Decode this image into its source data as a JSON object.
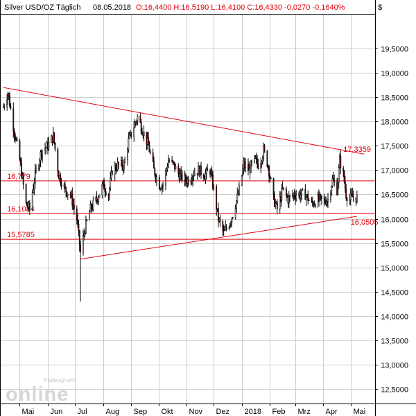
{
  "header": {
    "instrument": "Silver USD/OZ Täglich",
    "date": "08.05.2018",
    "ohlc_text": "O:16,4400 H:16,5190 L:16,4100 C:16,4330 -0,0270 -0,1640%",
    "currency_symbol": "$"
  },
  "watermark": {
    "line1": "Tradesignal®",
    "line2": "online"
  },
  "colors": {
    "background": "#ffffff",
    "frame": "#000000",
    "grid": "#c8d0c8",
    "candle_up": "#ffffff",
    "candle_down": "#8b0000",
    "wick": "#000000",
    "trendline": "#e0000a",
    "label_red": "#e0000a",
    "watermark": "#d0d0d0"
  },
  "chart_data": {
    "type": "candlestick",
    "title": "Silver USD/OZ Täglich",
    "y_axis": {
      "min": 12.2,
      "max": 20.2,
      "ticks": [
        "12,5000",
        "13,0000",
        "13,5000",
        "14,0000",
        "14,5000",
        "15,0000",
        "15,5000",
        "16,0000",
        "16,5000",
        "17,0000",
        "17,5000",
        "18,0000",
        "18,5000",
        "19,0000",
        "19,5000"
      ],
      "tick_values": [
        12.5,
        13.0,
        13.5,
        14.0,
        14.5,
        15.0,
        15.5,
        16.0,
        16.5,
        17.0,
        17.5,
        18.0,
        18.5,
        19.0,
        19.5
      ],
      "position": "right"
    },
    "x_axis": {
      "start": "2017-04-10",
      "end": "2018-05-28",
      "labels": [
        {
          "text": "Mai",
          "date": "2017-05-01"
        },
        {
          "text": "Jun",
          "date": "2017-06-01"
        },
        {
          "text": "Jul",
          "date": "2017-07-01"
        },
        {
          "text": "Aug",
          "date": "2017-08-01"
        },
        {
          "text": "Sep",
          "date": "2017-09-01"
        },
        {
          "text": "Okt",
          "date": "2017-10-01"
        },
        {
          "text": "Nov",
          "date": "2017-11-01"
        },
        {
          "text": "Dez",
          "date": "2017-12-01"
        },
        {
          "text": "2018",
          "date": "2018-01-01"
        },
        {
          "text": "Feb",
          "date": "2018-02-01"
        },
        {
          "text": "Mrz",
          "date": "2018-03-01"
        },
        {
          "text": "Apr",
          "date": "2018-04-01"
        },
        {
          "text": "Mai",
          "date": "2018-05-01"
        }
      ]
    },
    "grid": true,
    "price_path": [
      [
        "2017-04-13",
        18.3
      ],
      [
        "2017-04-18",
        18.6
      ],
      [
        "2017-04-24",
        17.9
      ],
      [
        "2017-05-01",
        17.2
      ],
      [
        "2017-05-08",
        16.3
      ],
      [
        "2017-05-12",
        16.2
      ],
      [
        "2017-05-18",
        16.9
      ],
      [
        "2017-05-25",
        17.4
      ],
      [
        "2017-06-01",
        17.5
      ],
      [
        "2017-06-07",
        17.7
      ],
      [
        "2017-06-13",
        16.9
      ],
      [
        "2017-06-20",
        16.6
      ],
      [
        "2017-06-26",
        16.5
      ],
      [
        "2017-07-03",
        16.0
      ],
      [
        "2017-07-07",
        15.3
      ],
      [
        "2017-07-12",
        15.8
      ],
      [
        "2017-07-18",
        16.2
      ],
      [
        "2017-07-25",
        16.4
      ],
      [
        "2017-08-01",
        16.7
      ],
      [
        "2017-08-07",
        16.5
      ],
      [
        "2017-08-11",
        17.0
      ],
      [
        "2017-08-17",
        17.1
      ],
      [
        "2017-08-24",
        17.1
      ],
      [
        "2017-08-29",
        17.6
      ],
      [
        "2017-09-04",
        17.9
      ],
      [
        "2017-09-08",
        18.1
      ],
      [
        "2017-09-14",
        17.8
      ],
      [
        "2017-09-20",
        17.5
      ],
      [
        "2017-09-26",
        17.0
      ],
      [
        "2017-10-02",
        16.7
      ],
      [
        "2017-10-06",
        16.7
      ],
      [
        "2017-10-12",
        17.2
      ],
      [
        "2017-10-18",
        17.1
      ],
      [
        "2017-10-24",
        16.9
      ],
      [
        "2017-10-30",
        16.8
      ],
      [
        "2017-11-03",
        16.8
      ],
      [
        "2017-11-09",
        16.95
      ],
      [
        "2017-11-15",
        17.0
      ],
      [
        "2017-11-21",
        16.9
      ],
      [
        "2017-11-27",
        17.0
      ],
      [
        "2017-12-01",
        16.6
      ],
      [
        "2017-12-06",
        16.0
      ],
      [
        "2017-12-12",
        15.7
      ],
      [
        "2017-12-18",
        15.9
      ],
      [
        "2017-12-22",
        16.1
      ],
      [
        "2017-12-28",
        16.5
      ],
      [
        "2018-01-03",
        17.1
      ],
      [
        "2018-01-09",
        17.0
      ],
      [
        "2018-01-15",
        17.2
      ],
      [
        "2018-01-20",
        17.1
      ],
      [
        "2018-01-25",
        17.4
      ],
      [
        "2018-01-30",
        17.1
      ],
      [
        "2018-02-05",
        16.4
      ],
      [
        "2018-02-09",
        16.2
      ],
      [
        "2018-02-15",
        16.6
      ],
      [
        "2018-02-21",
        16.4
      ],
      [
        "2018-02-27",
        16.5
      ],
      [
        "2018-03-05",
        16.5
      ],
      [
        "2018-03-12",
        16.5
      ],
      [
        "2018-03-19",
        16.3
      ],
      [
        "2018-03-26",
        16.4
      ],
      [
        "2018-04-02",
        16.35
      ],
      [
        "2018-04-06",
        16.4
      ],
      [
        "2018-04-11",
        16.8
      ],
      [
        "2018-04-16",
        16.6
      ],
      [
        "2018-04-19",
        17.2
      ],
      [
        "2018-04-23",
        16.9
      ],
      [
        "2018-04-26",
        16.5
      ],
      [
        "2018-04-30",
        16.4
      ],
      [
        "2018-05-03",
        16.45
      ],
      [
        "2018-05-08",
        16.43
      ]
    ],
    "spike_lows": [
      [
        "2017-07-07",
        14.3
      ]
    ],
    "trendlines": [
      {
        "name": "upper",
        "points": [
          [
            "2017-04-13",
            18.7
          ],
          [
            "2018-05-16",
            17.33
          ]
        ]
      },
      {
        "name": "lower",
        "points": [
          [
            "2017-07-07",
            15.17
          ],
          [
            "2018-05-08",
            16.05
          ]
        ]
      }
    ],
    "horizontal_levels": [
      {
        "value": 16.779,
        "label": "16,779",
        "label_at": "2017-04-17"
      },
      {
        "value": 16.1084,
        "label": "16,1084",
        "label_at": "2017-04-17"
      },
      {
        "value": 15.5785,
        "label": "15,5785",
        "label_at": "2017-04-17"
      }
    ],
    "annotations": [
      {
        "text": "17,3359",
        "date": "2018-04-23",
        "value": 17.3359
      },
      {
        "text": "16,0505",
        "date": "2018-05-01",
        "value": 16.0505
      }
    ]
  }
}
